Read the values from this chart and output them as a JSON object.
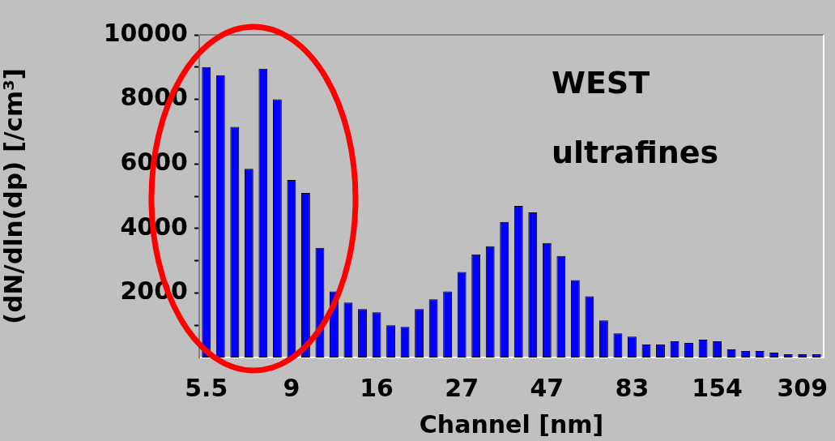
{
  "chart_data": {
    "type": "bar",
    "ylabel": "(dN/dln(dp) [/cm³]",
    "xlabel": "Channel [nm]",
    "categories": [
      "5.5",
      null,
      null,
      null,
      null,
      null,
      "9",
      null,
      null,
      null,
      null,
      null,
      "16",
      null,
      null,
      null,
      null,
      null,
      "27",
      null,
      null,
      null,
      null,
      null,
      "47",
      null,
      null,
      null,
      null,
      null,
      "83",
      null,
      null,
      null,
      null,
      null,
      "154",
      null,
      null,
      null,
      null,
      null,
      "309",
      null
    ],
    "values": [
      9000,
      8750,
      7150,
      5850,
      8950,
      8000,
      5500,
      5100,
      3400,
      2050,
      1700,
      1500,
      1400,
      1000,
      950,
      1500,
      1800,
      2050,
      2650,
      3200,
      3450,
      4200,
      4700,
      4500,
      3550,
      3150,
      2400,
      1900,
      1150,
      750,
      650,
      400,
      400,
      500,
      450,
      550,
      500,
      250,
      200,
      200,
      150,
      100,
      100,
      100
    ],
    "color": "#0000ff",
    "ylim": [
      0,
      10000
    ],
    "yticks": [
      {
        "value": 1000,
        "label": null
      },
      2000,
      {
        "value": 3000,
        "label": null
      },
      4000,
      {
        "value": 5000,
        "label": null
      },
      6000,
      {
        "value": 7000,
        "label": null
      },
      8000,
      {
        "value": 9000,
        "label": null
      },
      10000
    ],
    "grid": false,
    "legend": false,
    "annotations": [
      "WEST",
      "ultrafines"
    ]
  }
}
